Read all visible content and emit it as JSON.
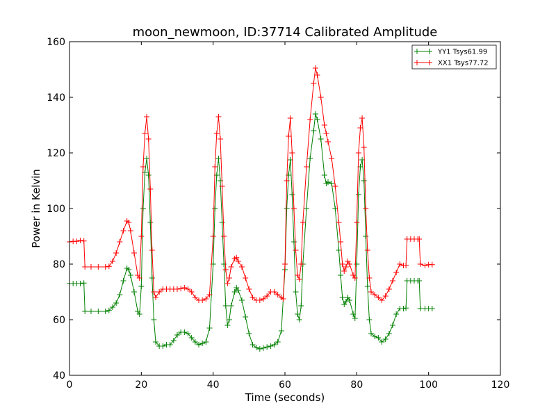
{
  "chart_data": {
    "type": "line",
    "title": "moon_newmoon, ID:37714 Calibrated Amplitude",
    "xlabel": "Time (seconds)",
    "ylabel": "Power in Kelvin",
    "xlim": [
      0,
      120
    ],
    "ylim": [
      40,
      160
    ],
    "xticks": [
      0,
      20,
      40,
      60,
      80,
      100,
      120
    ],
    "yticks": [
      40,
      60,
      80,
      100,
      120,
      140,
      160
    ],
    "grid": false,
    "legend_position": "top-right",
    "marker": "+",
    "series": [
      {
        "name": "YY1 Tsys61.99",
        "color": "#008000",
        "points": [
          [
            0,
            73
          ],
          [
            1,
            73
          ],
          [
            2,
            73
          ],
          [
            3,
            73
          ],
          [
            4,
            73.2
          ],
          [
            4.3,
            63
          ],
          [
            6,
            63
          ],
          [
            8,
            63
          ],
          [
            10,
            63
          ],
          [
            11,
            63.3
          ],
          [
            12,
            64.5
          ],
          [
            13,
            66
          ],
          [
            14,
            69
          ],
          [
            15,
            74
          ],
          [
            16,
            78.5
          ],
          [
            16.5,
            78
          ],
          [
            17,
            76
          ],
          [
            18,
            70
          ],
          [
            19,
            63
          ],
          [
            19.5,
            62
          ],
          [
            20,
            72
          ],
          [
            20.5,
            100
          ],
          [
            21,
            113
          ],
          [
            21.5,
            118
          ],
          [
            22,
            112
          ],
          [
            22.5,
            95
          ],
          [
            23,
            75
          ],
          [
            23.5,
            60
          ],
          [
            24,
            52
          ],
          [
            25,
            50.5
          ],
          [
            26,
            50.5
          ],
          [
            27,
            51
          ],
          [
            28,
            51
          ],
          [
            29,
            52.5
          ],
          [
            30,
            54.5
          ],
          [
            31,
            55.5
          ],
          [
            32,
            55.5
          ],
          [
            33,
            55
          ],
          [
            34,
            53.5
          ],
          [
            35,
            52
          ],
          [
            36,
            51
          ],
          [
            37,
            51.5
          ],
          [
            38,
            52
          ],
          [
            39,
            57
          ],
          [
            40,
            80
          ],
          [
            40.5,
            100
          ],
          [
            41,
            112
          ],
          [
            41.5,
            118
          ],
          [
            42,
            110
          ],
          [
            42.5,
            95
          ],
          [
            43,
            80
          ],
          [
            43.5,
            65
          ],
          [
            44,
            58
          ],
          [
            44.5,
            60
          ],
          [
            45,
            65
          ],
          [
            46,
            70
          ],
          [
            46.5,
            71.5
          ],
          [
            47,
            70.5
          ],
          [
            48,
            67
          ],
          [
            49,
            61
          ],
          [
            50,
            55
          ],
          [
            51,
            51
          ],
          [
            52,
            50
          ],
          [
            53,
            49.5
          ],
          [
            54,
            49.8
          ],
          [
            55,
            50.2
          ],
          [
            56,
            50.5
          ],
          [
            57,
            51
          ],
          [
            58,
            52
          ],
          [
            59,
            56
          ],
          [
            60,
            78
          ],
          [
            60.5,
            100
          ],
          [
            61,
            112
          ],
          [
            61.5,
            117.5
          ],
          [
            62,
            105
          ],
          [
            62.5,
            88
          ],
          [
            63,
            70
          ],
          [
            63.5,
            62
          ],
          [
            64,
            60
          ],
          [
            64.5,
            65
          ],
          [
            65,
            80
          ],
          [
            66,
            100
          ],
          [
            67,
            118
          ],
          [
            68,
            128
          ],
          [
            68.5,
            134
          ],
          [
            69,
            132
          ],
          [
            70,
            125
          ],
          [
            71,
            112
          ],
          [
            71.5,
            109
          ],
          [
            72,
            109.5
          ],
          [
            73,
            109
          ],
          [
            74,
            100
          ],
          [
            75,
            85
          ],
          [
            75.5,
            76
          ],
          [
            76,
            68
          ],
          [
            76.5,
            65.5
          ],
          [
            77,
            66.5
          ],
          [
            77.5,
            68
          ],
          [
            78,
            67
          ],
          [
            79,
            62
          ],
          [
            79.5,
            60.5
          ],
          [
            80,
            80
          ],
          [
            80.5,
            105
          ],
          [
            81,
            115
          ],
          [
            81.5,
            117.5
          ],
          [
            82,
            110
          ],
          [
            82.5,
            90
          ],
          [
            83,
            72
          ],
          [
            83.5,
            60
          ],
          [
            84,
            55
          ],
          [
            85,
            54
          ],
          [
            86,
            53.5
          ],
          [
            87,
            52
          ],
          [
            88,
            53
          ],
          [
            89,
            55
          ],
          [
            90,
            58
          ],
          [
            91,
            62
          ],
          [
            92,
            64
          ],
          [
            93,
            64
          ],
          [
            93.7,
            64.2
          ],
          [
            94,
            74
          ],
          [
            95,
            74
          ],
          [
            96,
            74
          ],
          [
            97,
            74
          ],
          [
            97.4,
            74
          ],
          [
            97.7,
            64
          ],
          [
            99,
            64
          ],
          [
            100,
            64
          ],
          [
            101,
            64
          ]
        ]
      },
      {
        "name": "XX1 Tsys77.72",
        "color": "#ff0000",
        "points": [
          [
            0,
            88
          ],
          [
            1,
            88.2
          ],
          [
            2,
            88.2
          ],
          [
            3,
            88.5
          ],
          [
            4,
            88.3
          ],
          [
            4.3,
            79
          ],
          [
            6,
            79
          ],
          [
            8,
            79
          ],
          [
            10,
            79
          ],
          [
            11,
            79.2
          ],
          [
            12,
            81
          ],
          [
            13,
            84
          ],
          [
            14,
            88
          ],
          [
            15,
            92
          ],
          [
            16,
            95.5
          ],
          [
            16.5,
            95
          ],
          [
            17,
            92
          ],
          [
            18,
            84
          ],
          [
            19,
            76
          ],
          [
            19.5,
            75
          ],
          [
            20,
            90
          ],
          [
            20.5,
            115
          ],
          [
            21,
            127
          ],
          [
            21.5,
            133
          ],
          [
            22,
            125
          ],
          [
            22.5,
            107
          ],
          [
            23,
            85
          ],
          [
            23.5,
            70
          ],
          [
            24,
            68
          ],
          [
            25,
            70
          ],
          [
            26,
            71
          ],
          [
            27,
            71
          ],
          [
            28,
            71
          ],
          [
            29,
            71
          ],
          [
            30,
            71
          ],
          [
            31,
            71.2
          ],
          [
            32,
            71.5
          ],
          [
            33,
            71
          ],
          [
            34,
            70
          ],
          [
            35,
            68
          ],
          [
            36,
            67
          ],
          [
            37,
            67
          ],
          [
            38,
            67.5
          ],
          [
            39,
            69
          ],
          [
            40,
            90
          ],
          [
            40.5,
            115
          ],
          [
            41,
            127
          ],
          [
            41.5,
            133
          ],
          [
            42,
            125
          ],
          [
            42.5,
            108
          ],
          [
            43,
            90
          ],
          [
            43.5,
            78
          ],
          [
            44,
            73
          ],
          [
            44.5,
            75
          ],
          [
            45,
            79
          ],
          [
            46,
            82
          ],
          [
            46.5,
            82.3
          ],
          [
            47,
            81
          ],
          [
            48,
            79
          ],
          [
            49,
            75
          ],
          [
            50,
            71
          ],
          [
            51,
            68
          ],
          [
            52,
            67
          ],
          [
            53,
            67
          ],
          [
            54,
            67.5
          ],
          [
            55,
            68.5
          ],
          [
            56,
            70
          ],
          [
            57,
            70
          ],
          [
            58,
            69
          ],
          [
            59,
            68
          ],
          [
            59.5,
            67.5
          ],
          [
            60,
            80
          ],
          [
            60.5,
            110
          ],
          [
            61,
            126
          ],
          [
            61.5,
            132.5
          ],
          [
            62,
            120
          ],
          [
            62.5,
            100
          ],
          [
            63,
            85
          ],
          [
            63.5,
            76
          ],
          [
            64,
            74.5
          ],
          [
            64.5,
            80
          ],
          [
            65,
            95
          ],
          [
            66,
            115
          ],
          [
            67,
            132
          ],
          [
            68,
            145
          ],
          [
            68.5,
            150.5
          ],
          [
            69,
            148
          ],
          [
            70,
            140
          ],
          [
            71,
            130
          ],
          [
            71.5,
            127
          ],
          [
            72,
            124
          ],
          [
            73,
            118
          ],
          [
            74,
            108
          ],
          [
            75,
            95
          ],
          [
            75.5,
            88
          ],
          [
            76,
            80
          ],
          [
            76.5,
            77.5
          ],
          [
            77,
            79
          ],
          [
            77.5,
            81
          ],
          [
            78,
            80
          ],
          [
            79,
            76
          ],
          [
            79.5,
            75
          ],
          [
            80,
            95
          ],
          [
            80.5,
            120
          ],
          [
            81,
            129
          ],
          [
            81.5,
            132.5
          ],
          [
            82,
            122
          ],
          [
            82.5,
            100
          ],
          [
            83,
            85
          ],
          [
            83.5,
            75
          ],
          [
            84,
            70
          ],
          [
            85,
            69
          ],
          [
            86,
            68
          ],
          [
            87,
            67
          ],
          [
            88,
            68.5
          ],
          [
            89,
            71
          ],
          [
            90,
            74
          ],
          [
            91,
            77
          ],
          [
            92,
            80
          ],
          [
            93,
            79.5
          ],
          [
            93.7,
            79.5
          ],
          [
            94,
            89
          ],
          [
            95,
            89
          ],
          [
            96,
            89
          ],
          [
            97,
            89
          ],
          [
            97.4,
            89
          ],
          [
            97.7,
            80
          ],
          [
            99,
            79.5
          ],
          [
            100,
            79.8
          ],
          [
            101,
            79.8
          ]
        ]
      }
    ]
  }
}
